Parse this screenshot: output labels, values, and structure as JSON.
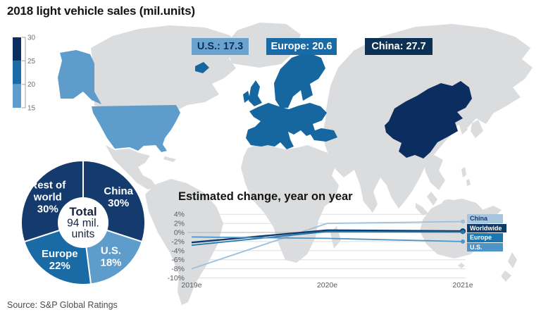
{
  "title": "2018 light vehicle sales (mil.units)",
  "source_note": "Source: S&P Global Ratings",
  "map": {
    "region_colors": {
      "land": "#dbdcde",
      "us": "#5e9dcb",
      "europe": "#16679f",
      "china": "#0c2d5f"
    },
    "badges": [
      {
        "id": "us",
        "label": "U.S.: 17.3",
        "bg": "#6aa3cf",
        "text_color": "#0e2f57"
      },
      {
        "id": "europe",
        "label": "Europe: 20.6",
        "bg": "#1a6ba5",
        "text_color": "#ffffff"
      },
      {
        "id": "china",
        "label": "China: 27.7",
        "bg": "#0d3055",
        "text_color": "#ffffff"
      }
    ],
    "color_scale": {
      "tick_labels": [
        "30",
        "25",
        "20",
        "15"
      ],
      "segment_colors": [
        "#0c2d5f",
        "#1a6ba5",
        "#5e9dcb"
      ]
    }
  },
  "chart_data": [
    {
      "type": "pie",
      "center_lines": [
        "Total",
        "94 mil.",
        "units"
      ],
      "total_units_mil": 94,
      "slices": [
        {
          "label": "China",
          "pct": 30,
          "color": "#143a6e",
          "label_lines": [
            "China",
            "30%"
          ]
        },
        {
          "label": "U.S.",
          "pct": 18,
          "color": "#5e9dcb",
          "label_lines": [
            "U.S.",
            "18%"
          ]
        },
        {
          "label": "Europe",
          "pct": 22,
          "color": "#1a6ba5",
          "label_lines": [
            "Europe",
            "22%"
          ]
        },
        {
          "label": "Rest of world",
          "pct": 30,
          "color": "#143a6e",
          "label_lines": [
            "Rest of",
            "world",
            "30%"
          ]
        }
      ]
    },
    {
      "type": "line",
      "title": "Estimated change, year on year",
      "x": [
        "2019e",
        "2020e",
        "2021e"
      ],
      "ylim": [
        -10,
        4
      ],
      "yticks": [
        4,
        2,
        0,
        -2,
        -4,
        -6,
        -8,
        -10
      ],
      "ytick_labels": [
        "4%",
        "2%",
        "0%",
        "-2%",
        "-4%",
        "-6%",
        "-8%",
        "-10%"
      ],
      "grid": true,
      "legend_position": "right",
      "series": [
        {
          "name": "China",
          "values": [
            -8,
            2,
            2.4
          ],
          "color": "#9cc0dd",
          "chip_bg": "#a7c6dd",
          "chip_text": "#123a6b"
        },
        {
          "name": "Worldwide",
          "values": [
            -2.2,
            0.5,
            0.3
          ],
          "color": "#123a6b",
          "chip_bg": "#0d3a66",
          "chip_text": "#ffffff"
        },
        {
          "name": "Europe",
          "values": [
            -2.8,
            0.2,
            0.1
          ],
          "color": "#1f77ad",
          "chip_bg": "#1a77b0",
          "chip_text": "#ffffff"
        },
        {
          "name": "U.S.",
          "values": [
            -1,
            -1.3,
            -2
          ],
          "color": "#4f94c6",
          "chip_bg": "#4f94c6",
          "chip_text": "#ffffff"
        }
      ]
    }
  ]
}
